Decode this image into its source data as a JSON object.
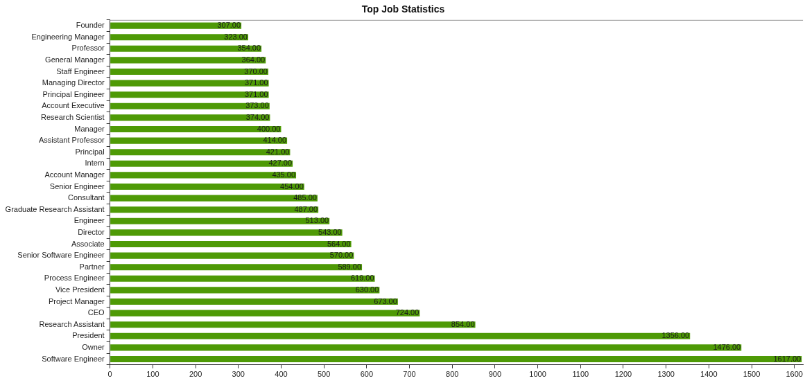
{
  "chart_data": {
    "type": "bar",
    "title": "Top Job Statistics",
    "orientation": "horizontal",
    "categories": [
      "Founder",
      "Engineering Manager",
      "Professor",
      "General Manager",
      "Staff Engineer",
      "Managing Director",
      "Principal Engineer",
      "Account Executive",
      "Research Scientist",
      "Manager",
      "Assistant Professor",
      "Principal",
      "Intern",
      "Account Manager",
      "Senior Engineer",
      "Consultant",
      "Graduate Research Assistant",
      "Engineer",
      "Director",
      "Associate",
      "Senior Software Engineer",
      "Partner",
      "Process Engineer",
      "Vice President",
      "Project Manager",
      "CEO",
      "Research Assistant",
      "President",
      "Owner",
      "Software Engineer"
    ],
    "values": [
      307,
      323,
      354,
      364,
      370,
      371,
      371,
      373,
      374,
      400,
      414,
      421,
      427,
      435,
      454,
      485,
      487,
      513,
      543,
      564,
      570,
      589,
      619,
      630,
      673,
      724,
      854,
      1356,
      1476,
      1617
    ],
    "value_labels": [
      "307.00",
      "323.00",
      "354.00",
      "364.00",
      "370.00",
      "371.00",
      "371.00",
      "373.00",
      "374.00",
      "400.00",
      "414.00",
      "421.00",
      "427.00",
      "435.00",
      "454.00",
      "485.00",
      "487.00",
      "513.00",
      "543.00",
      "564.00",
      "570.00",
      "589.00",
      "619.00",
      "630.00",
      "673.00",
      "724.00",
      "854.00",
      "1356.00",
      "1476.00",
      "1617.00"
    ],
    "color": "#4e9a06",
    "xlim": [
      0,
      1620
    ],
    "xticks": [
      0,
      100,
      200,
      300,
      400,
      500,
      600,
      700,
      800,
      900,
      1000,
      1100,
      1200,
      1300,
      1400,
      1500,
      1600
    ],
    "grid": false,
    "legend": false
  }
}
